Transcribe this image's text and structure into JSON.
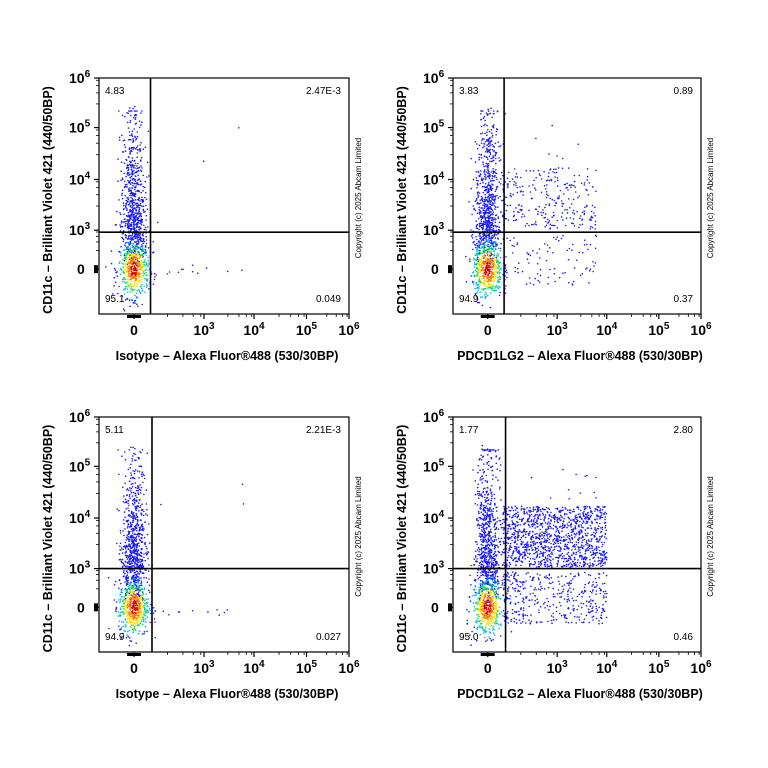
{
  "copyright": "Copyright (c) 2025 Abcam Limited",
  "colors": {
    "frame": "#000000",
    "gate": "#000000",
    "density": [
      "#1a1aff",
      "#00b4ff",
      "#00e060",
      "#ffe000",
      "#ff7a00",
      "#e00000"
    ]
  },
  "chart_data": [
    {
      "type": "scatter",
      "xlabel": "Isotype – Alexa Fluor®488 (530/30BP)",
      "ylabel": "CD11c – Brilliant Violet 421  (440/50BP)",
      "x_ticks": [
        {
          "base": "0"
        },
        {
          "base": "10",
          "exp": "3"
        },
        {
          "base": "10",
          "exp": "4"
        },
        {
          "base": "10",
          "exp": "5"
        },
        {
          "base": "10",
          "exp": "6"
        }
      ],
      "y_ticks": [
        {
          "base": "0"
        },
        {
          "base": "10",
          "exp": "3"
        },
        {
          "base": "10",
          "exp": "4"
        },
        {
          "base": "10",
          "exp": "5"
        },
        {
          "base": "10",
          "exp": "6"
        }
      ],
      "x_scale": "biexponential",
      "y_scale": "biexponential",
      "gate": {
        "x": 300,
        "y": 700
      },
      "quadrants": {
        "upper_left": "4.83",
        "upper_right": "2.47E-3",
        "lower_left": "95.1",
        "lower_right": "0.049"
      }
    },
    {
      "type": "scatter",
      "xlabel": "PDCD1LG2 – Alexa Fluor®488 (530/30BP)",
      "ylabel": "CD11c – Brilliant Violet 421  (440/50BP)",
      "x_ticks": [
        {
          "base": "0"
        },
        {
          "base": "10",
          "exp": "3"
        },
        {
          "base": "10",
          "exp": "4"
        },
        {
          "base": "10",
          "exp": "5"
        },
        {
          "base": "10",
          "exp": "6"
        }
      ],
      "y_ticks": [
        {
          "base": "0"
        },
        {
          "base": "10",
          "exp": "3"
        },
        {
          "base": "10",
          "exp": "4"
        },
        {
          "base": "10",
          "exp": "5"
        },
        {
          "base": "10",
          "exp": "6"
        }
      ],
      "x_scale": "biexponential",
      "y_scale": "biexponential",
      "gate": {
        "x": 300,
        "y": 700
      },
      "quadrants": {
        "upper_left": "3.83",
        "upper_right": "0.89",
        "lower_left": "94.9",
        "lower_right": "0.37"
      }
    },
    {
      "type": "scatter",
      "xlabel": "Isotype – Alexa Fluor®488 (530/30BP)",
      "ylabel": "CD11c – Brilliant Violet 421  (440/50BP)",
      "x_ticks": [
        {
          "base": "0"
        },
        {
          "base": "10",
          "exp": "3"
        },
        {
          "base": "10",
          "exp": "4"
        },
        {
          "base": "10",
          "exp": "5"
        },
        {
          "base": "10",
          "exp": "6"
        }
      ],
      "y_ticks": [
        {
          "base": "0"
        },
        {
          "base": "10",
          "exp": "3"
        },
        {
          "base": "10",
          "exp": "4"
        },
        {
          "base": "10",
          "exp": "5"
        },
        {
          "base": "10",
          "exp": "6"
        }
      ],
      "x_scale": "biexponential",
      "y_scale": "biexponential",
      "gate": {
        "x": 500,
        "y": 1000
      },
      "quadrants": {
        "upper_left": "5.11",
        "upper_right": "2.21E-3",
        "lower_left": "94.9",
        "lower_right": "0.027"
      }
    },
    {
      "type": "scatter",
      "xlabel": "PDCD1LG2 – Alexa Fluor®488 (530/30BP)",
      "ylabel": "CD11c – Brilliant Violet 421  (440/50BP)",
      "x_ticks": [
        {
          "base": "0"
        },
        {
          "base": "10",
          "exp": "3"
        },
        {
          "base": "10",
          "exp": "4"
        },
        {
          "base": "10",
          "exp": "5"
        },
        {
          "base": "10",
          "exp": "6"
        }
      ],
      "y_ticks": [
        {
          "base": "0"
        },
        {
          "base": "10",
          "exp": "3"
        },
        {
          "base": "10",
          "exp": "4"
        },
        {
          "base": "10",
          "exp": "5"
        },
        {
          "base": "10",
          "exp": "6"
        }
      ],
      "x_scale": "biexponential",
      "y_scale": "biexponential",
      "gate": {
        "x": 500,
        "y": 1000
      },
      "quadrants": {
        "upper_left": "1.77",
        "upper_right": "2.80",
        "lower_left": "95.0",
        "lower_right": "0.46"
      }
    }
  ]
}
